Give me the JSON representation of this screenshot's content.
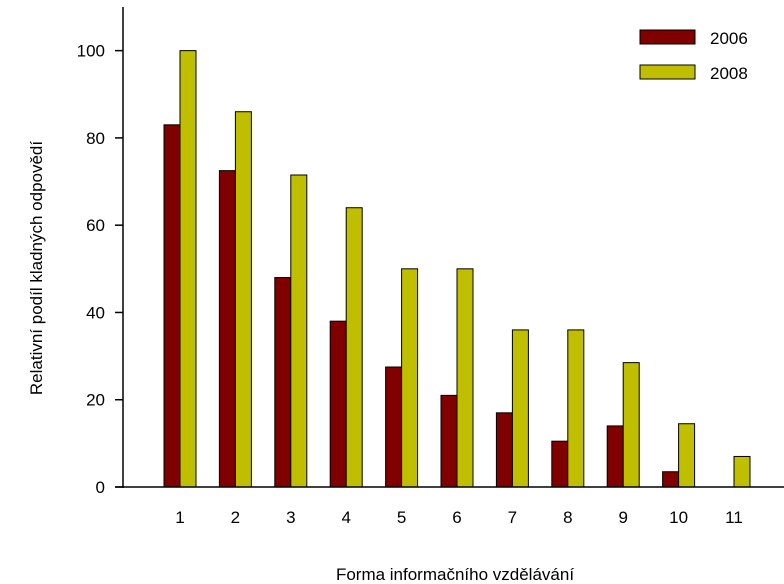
{
  "chart_data": {
    "type": "bar",
    "categories": [
      "1",
      "2",
      "3",
      "4",
      "5",
      "6",
      "7",
      "8",
      "9",
      "10",
      "11"
    ],
    "series": [
      {
        "name": "2006",
        "color": "#800000",
        "values": [
          83,
          72.5,
          48,
          38,
          27.5,
          21,
          17,
          10.5,
          14,
          3.5,
          null
        ]
      },
      {
        "name": "2008",
        "color": "#bfbf00",
        "values": [
          100,
          86,
          71.5,
          64,
          50,
          50,
          36,
          36,
          28.5,
          14.5,
          7
        ]
      }
    ],
    "xlabel": "Forma informačního vzdělávání",
    "ylabel": "Relativní podíl kladných odpovědí",
    "ylim": [
      0,
      110
    ],
    "yticks": [
      "0",
      "20",
      "40",
      "60",
      "80",
      "100"
    ],
    "legend_position": "top-right",
    "grid": false
  }
}
